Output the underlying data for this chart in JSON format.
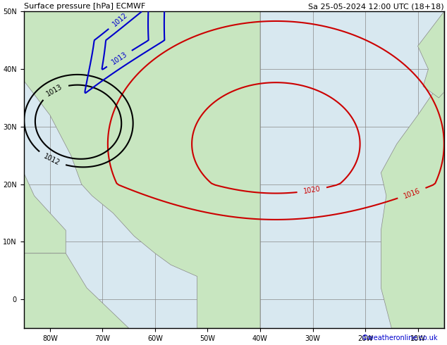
{
  "title_left": "Surface pressure [hPa] ECMWF",
  "title_right": "Sa 25-05-2024 12:00 UTC (18+18)",
  "credit": "©weatheronline.co.uk",
  "background_color": "#d8e8f0",
  "land_color": "#c8e6c0",
  "grid_color": "#888888",
  "border_color": "#000000",
  "figsize": [
    6.34,
    4.9
  ],
  "dpi": 100,
  "lon_min": -85,
  "lon_max": -5,
  "lat_min": -5,
  "lat_max": 50,
  "grid_lons": [
    -80,
    -70,
    -60,
    -50,
    -40,
    -30,
    -20,
    -10
  ],
  "grid_lats": [
    0,
    10,
    20,
    30,
    40,
    50
  ],
  "tick_labels_lon": [
    "80W",
    "70W",
    "60W",
    "50W",
    "40W",
    "30W",
    "20W",
    "10W"
  ],
  "tick_labels_lat": [
    "0",
    "10N",
    "20N",
    "30N",
    "40N",
    "50N"
  ],
  "red_color": "#cc0000",
  "black_color": "#000000",
  "blue_color": "#0000cc",
  "label_fontsize": 7,
  "axis_label_fontsize": 7,
  "title_fontsize": 8,
  "credit_fontsize": 7,
  "credit_color": "#0000cc"
}
